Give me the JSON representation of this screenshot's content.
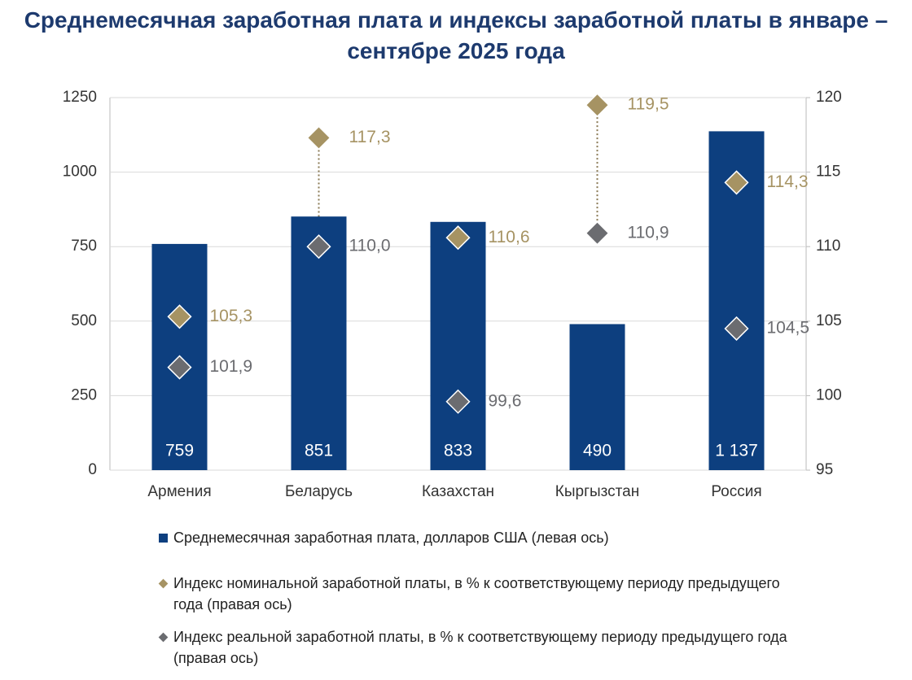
{
  "chart_data": {
    "type": "bar",
    "title": "Среднемесячная заработная плата и индексы заработной платы в январе – сентябре 2025 года",
    "categories": [
      "Армения",
      "Беларусь",
      "Казахстан",
      "Кыргызстан",
      "Россия"
    ],
    "series": [
      {
        "name": "Среднемесячная заработная плата, долларов США (левая ось)",
        "type": "bar",
        "color": "#0d3f7f",
        "values": [
          759,
          851,
          833,
          490,
          1137
        ],
        "value_labels": [
          "759",
          "851",
          "833",
          "490",
          "1 137"
        ]
      },
      {
        "name": "Индекс номинальной заработной платы, в % к соответствующему периоду предыдущего года (правая ось)",
        "type": "diamond",
        "axis": "y2",
        "color": "#a69363",
        "values": [
          105.3,
          117.3,
          110.6,
          119.5,
          114.3
        ],
        "value_labels": [
          "105,3",
          "117,3",
          "110,6",
          "119,5",
          "114,3"
        ]
      },
      {
        "name": "Индекс реальной заработной платы, в % к соответствующему периоду предыдущего года (правая ось)",
        "type": "diamond",
        "axis": "y2",
        "color": "#6b6c70",
        "values": [
          101.9,
          110.0,
          99.6,
          110.9,
          104.5
        ],
        "value_labels": [
          "101,9",
          "110,0",
          "99,6",
          "110,9",
          "104,5"
        ]
      }
    ],
    "ylim": [
      0,
      1250
    ],
    "yticks": [
      0,
      250,
      500,
      750,
      1000,
      1250
    ],
    "y2lim": [
      95,
      120
    ],
    "y2ticks": [
      95,
      100,
      105,
      110,
      115,
      120
    ],
    "grid": true
  }
}
